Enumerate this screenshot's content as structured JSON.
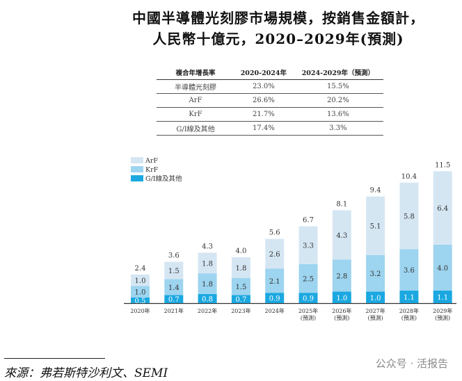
{
  "title_line1": "中國半導體光刻膠市場規模，按銷售金額計，",
  "title_line2": "人民幣十億元，2020–2029年(預測)",
  "cagr_table": {
    "headers": [
      "複合年增長率",
      "2020-2024年",
      "2024-2029年（預測）"
    ],
    "rows": [
      [
        "半導體光刻膠",
        "23.0%",
        "15.5%"
      ],
      [
        "ArF",
        "26.6%",
        "20.2%"
      ],
      [
        "KrF",
        "21.7%",
        "13.6%"
      ],
      [
        "G/I線及其他",
        "17.4%",
        "3.3%"
      ]
    ]
  },
  "chart_data": {
    "type": "bar",
    "stacked": true,
    "title": "中國半導體光刻膠市場規模，按銷售金額計，人民幣十億元，2020–2029年(預測)",
    "categories": [
      "2020年",
      "2021年",
      "2022年",
      "2023年",
      "2024年",
      "2025年",
      "2026年",
      "2027年",
      "2028年",
      "2029年"
    ],
    "category_sublabels": [
      "",
      "",
      "",
      "",
      "",
      "(預測)",
      "(預測)",
      "(預測)",
      "(預測)",
      "(預測)"
    ],
    "series": [
      {
        "name": "G/I線及其他",
        "color": "#1ba8e0",
        "values": [
          0.5,
          0.7,
          0.8,
          0.7,
          0.9,
          0.9,
          1.0,
          1.0,
          1.1,
          1.1
        ]
      },
      {
        "name": "KrF",
        "color": "#9dd4ef",
        "values": [
          1.0,
          1.4,
          1.8,
          1.5,
          2.1,
          2.5,
          2.8,
          3.2,
          3.6,
          4.0
        ]
      },
      {
        "name": "ArF",
        "color": "#d5e6f3",
        "values": [
          1.0,
          1.5,
          1.8,
          1.8,
          2.6,
          3.3,
          4.3,
          5.1,
          5.8,
          6.4
        ]
      }
    ],
    "totals": [
      "2.4",
      "3.6",
      "4.3",
      "4.0",
      "5.6",
      "6.7",
      "8.1",
      "9.4",
      "10.4",
      "11.5"
    ],
    "legend_order": [
      "ArF",
      "KrF",
      "G/I線及其他"
    ],
    "legend": "top-left",
    "ylim": [
      0,
      11.5
    ],
    "xlabel": "",
    "ylabel": "",
    "grid": false
  },
  "source": "來源：弗若斯特沙利文、SEMI",
  "watermark": "公众号 · 活报告"
}
